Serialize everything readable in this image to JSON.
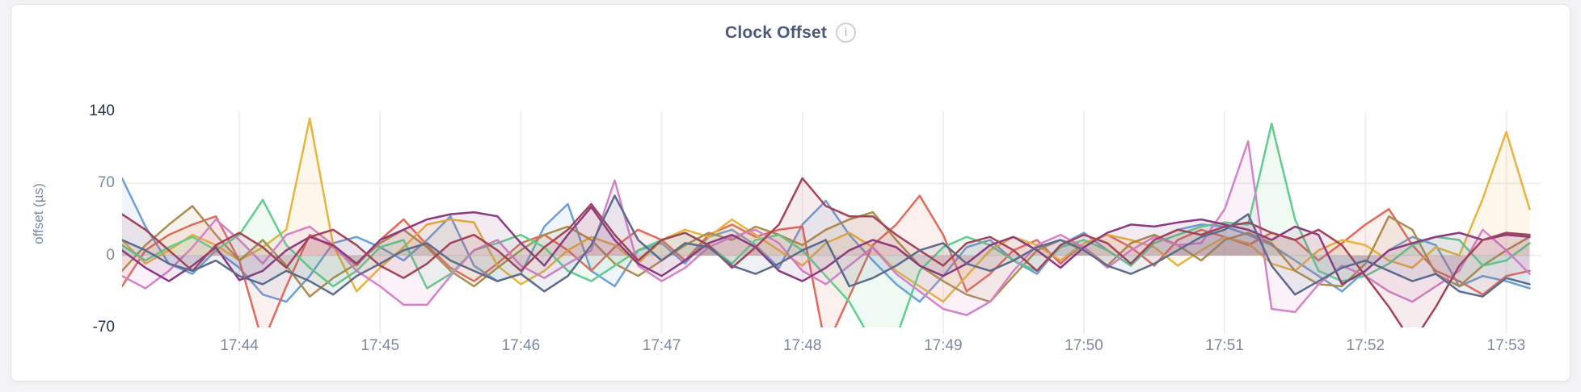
{
  "panel": {
    "title": "Clock Offset",
    "info_icon_glyph": "i"
  },
  "colors": {
    "page_bg": "#f3f3f5",
    "card_bg": "#ffffff",
    "card_border": "#e4e4e7",
    "grid": "#ececee",
    "title_text": "#4b5a78",
    "tick_text": "#7c88a1",
    "tick_text_emphasis": "#25334f",
    "info_icon": "#a6b0c0"
  },
  "chart_data": {
    "type": "line",
    "title": "Clock Offset",
    "xlabel": "",
    "ylabel": "offset (µs)",
    "legend_position": "none",
    "grid": true,
    "ylim": [
      -70,
      140
    ],
    "y_ticks": [
      {
        "label": "140",
        "value": 140,
        "emphasis": true
      },
      {
        "label": "70",
        "value": 70,
        "emphasis": false
      },
      {
        "label": "0",
        "value": 0,
        "emphasis": false
      },
      {
        "label": "-70",
        "value": -70,
        "emphasis": true
      }
    ],
    "y_gridlines": [
      70,
      0
    ],
    "x_ticks": [
      "17:44",
      "17:45",
      "17:46",
      "17:47",
      "17:48",
      "17:49",
      "17:50",
      "17:51",
      "17:52",
      "17:53"
    ],
    "x_start_time": "17:43:10",
    "x_tick_first_offset_seconds": 50,
    "x_tick_step_seconds": 60,
    "x_window_seconds": 605,
    "x_step_seconds": 10,
    "stroke_width": 2.5,
    "fill_opacity": 0.1,
    "series": [
      {
        "id": "series-1",
        "color": "#6C9FD8",
        "values": [
          75,
          28,
          -8,
          -18,
          5,
          -12,
          -38,
          -45,
          -20,
          12,
          18,
          8,
          -5,
          15,
          38,
          -10,
          -25,
          -18,
          28,
          50,
          -15,
          -30,
          5,
          12,
          -8,
          18,
          25,
          10,
          -12,
          30,
          53,
          20,
          -5,
          -28,
          -45,
          -20,
          8,
          15,
          -5,
          -18,
          10,
          22,
          5,
          -10,
          15,
          25,
          30,
          28,
          20,
          10,
          -5,
          -20,
          -35,
          -15,
          5,
          18,
          10,
          -30,
          -20,
          -25,
          -32
        ]
      },
      {
        "id": "series-2",
        "color": "#E06A5C",
        "values": [
          -30,
          5,
          20,
          30,
          38,
          -5,
          -85,
          -30,
          20,
          8,
          -10,
          15,
          35,
          10,
          -12,
          -25,
          -8,
          12,
          20,
          5,
          -15,
          8,
          25,
          15,
          -5,
          20,
          30,
          18,
          25,
          28,
          -90,
          -40,
          10,
          30,
          58,
          20,
          -35,
          -18,
          5,
          15,
          -8,
          12,
          20,
          8,
          -10,
          15,
          25,
          18,
          10,
          22,
          15,
          -5,
          12,
          30,
          45,
          10,
          -15,
          -25,
          -38,
          -20,
          -15
        ]
      },
      {
        "id": "series-3",
        "color": "#E7B43F",
        "values": [
          15,
          -8,
          5,
          20,
          10,
          -5,
          8,
          25,
          133,
          10,
          -35,
          -12,
          8,
          30,
          35,
          32,
          -10,
          -28,
          -15,
          5,
          18,
          10,
          -8,
          15,
          25,
          18,
          35,
          20,
          5,
          -10,
          12,
          22,
          8,
          -15,
          -30,
          -45,
          -20,
          5,
          18,
          10,
          -5,
          12,
          20,
          15,
          8,
          -10,
          5,
          18,
          12,
          -8,
          -15,
          5,
          15,
          10,
          -5,
          -12,
          8,
          0,
          55,
          120,
          45
        ]
      },
      {
        "id": "series-4",
        "color": "#AB8E4F",
        "values": [
          -15,
          10,
          30,
          48,
          20,
          -5,
          15,
          -10,
          -40,
          -22,
          -8,
          12,
          25,
          8,
          -15,
          -30,
          -12,
          5,
          20,
          28,
          15,
          -8,
          -20,
          -5,
          10,
          22,
          15,
          28,
          20,
          10,
          25,
          35,
          42,
          15,
          -10,
          -25,
          -38,
          -45,
          -20,
          5,
          15,
          8,
          -10,
          12,
          20,
          10,
          -5,
          15,
          22,
          12,
          -15,
          -28,
          -30,
          -8,
          38,
          25,
          -18,
          -30,
          -10,
          5,
          18
        ]
      },
      {
        "id": "series-5",
        "color": "#62CC8C",
        "values": [
          10,
          -5,
          8,
          18,
          5,
          20,
          54,
          10,
          -12,
          -30,
          -15,
          8,
          15,
          -32,
          -18,
          5,
          12,
          20,
          8,
          -15,
          -25,
          -10,
          5,
          15,
          22,
          10,
          -8,
          15,
          20,
          5,
          -20,
          -45,
          -85,
          -80,
          -15,
          8,
          18,
          10,
          -5,
          -15,
          8,
          15,
          5,
          -10,
          12,
          20,
          28,
          32,
          30,
          128,
          35,
          -15,
          -25,
          -20,
          -8,
          10,
          18,
          15,
          -10,
          -5,
          12
        ]
      },
      {
        "id": "series-6",
        "color": "#D583C8",
        "values": [
          -20,
          -32,
          -15,
          8,
          35,
          15,
          -8,
          20,
          28,
          10,
          -15,
          -30,
          -48,
          -48,
          -20,
          5,
          15,
          -10,
          -22,
          -8,
          5,
          73,
          -10,
          -25,
          -12,
          8,
          18,
          25,
          12,
          -15,
          -28,
          -10,
          8,
          -18,
          -35,
          -52,
          -58,
          -45,
          -15,
          10,
          20,
          8,
          -12,
          5,
          18,
          10,
          12,
          45,
          111,
          -52,
          -55,
          -28,
          -10,
          -20,
          -35,
          -45,
          -30,
          -15,
          25,
          5,
          -18
        ]
      },
      {
        "id": "series-7",
        "color": "#8B3A80",
        "values": [
          5,
          -12,
          -25,
          -10,
          8,
          -24,
          -15,
          5,
          18,
          10,
          -8,
          15,
          25,
          35,
          40,
          42,
          38,
          12,
          -10,
          20,
          47,
          15,
          -8,
          -20,
          -5,
          12,
          20,
          8,
          -15,
          -25,
          -12,
          5,
          15,
          8,
          -10,
          -20,
          -8,
          10,
          18,
          5,
          -12,
          8,
          22,
          30,
          28,
          32,
          35,
          30,
          25,
          15,
          28,
          20,
          -28,
          -15,
          5,
          12,
          18,
          22,
          15,
          20,
          18
        ]
      },
      {
        "id": "series-8",
        "color": "#A24459",
        "values": [
          40,
          25,
          5,
          -15,
          10,
          22,
          8,
          -12,
          18,
          25,
          10,
          -10,
          -22,
          -8,
          12,
          20,
          5,
          -15,
          8,
          25,
          50,
          20,
          -5,
          15,
          22,
          10,
          -12,
          8,
          30,
          75,
          48,
          38,
          38,
          20,
          5,
          -10,
          12,
          18,
          5,
          -15,
          10,
          20,
          12,
          -8,
          15,
          25,
          20,
          28,
          32,
          22,
          15,
          25,
          10,
          -20,
          -50,
          -85,
          -50,
          -10,
          15,
          22,
          20
        ]
      },
      {
        "id": "series-9",
        "color": "#5C6B8B",
        "values": [
          15,
          5,
          -8,
          -15,
          -5,
          -20,
          -28,
          -15,
          -25,
          -38,
          -20,
          -8,
          5,
          12,
          -5,
          -15,
          -25,
          -18,
          -35,
          -20,
          10,
          58,
          15,
          -5,
          12,
          8,
          -10,
          -18,
          -8,
          5,
          15,
          -30,
          -22,
          -10,
          5,
          12,
          -8,
          -15,
          -5,
          8,
          15,
          5,
          -10,
          -18,
          -8,
          5,
          18,
          25,
          40,
          -10,
          -38,
          -25,
          -12,
          -5,
          -15,
          -25,
          -18,
          -35,
          -40,
          -22,
          -28
        ]
      }
    ]
  }
}
